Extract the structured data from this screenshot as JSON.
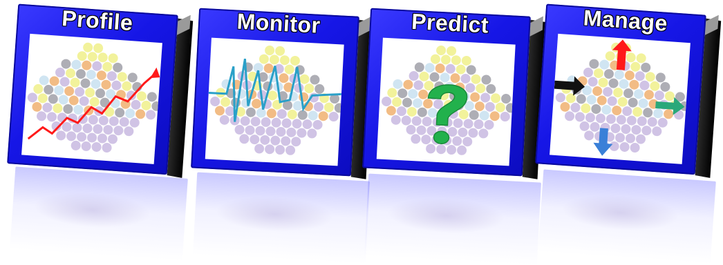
{
  "panels": [
    {
      "id": "profile",
      "title": "Profile",
      "graphic": "rising-trend-arrow",
      "accent": "#ff1a1a"
    },
    {
      "id": "monitor",
      "title": "Monitor",
      "graphic": "heartbeat-signal-line",
      "accent": "#2aa0c8"
    },
    {
      "id": "predict",
      "title": "Predict",
      "graphic": "question-mark",
      "accent": "#22b14c"
    },
    {
      "id": "manage",
      "title": "Manage",
      "graphic": "directional-arrows",
      "accent": "#ff1a1a"
    }
  ],
  "colors": {
    "panel_blue": "#1a1ae6",
    "atom_yellow": "#f0f08a",
    "atom_orange": "#f0b070",
    "atom_grey": "#a0a0a8",
    "atom_lavender": "#c8b8e0",
    "atom_lightblue": "#c8e0f0"
  }
}
